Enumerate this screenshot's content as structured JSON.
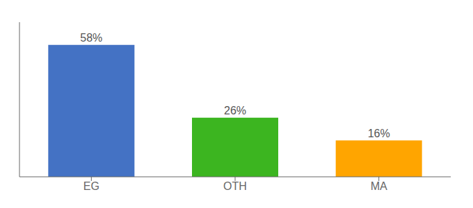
{
  "chart_data": {
    "type": "bar",
    "categories": [
      "EG",
      "OTH",
      "MA"
    ],
    "values": [
      58,
      26,
      16
    ],
    "value_labels": [
      "58%",
      "26%",
      "16%"
    ],
    "colors": [
      "#4472C4",
      "#3CB520",
      "#FFA500"
    ],
    "ylim": [
      0,
      68
    ],
    "data_labels": true,
    "tick_labels": "x",
    "grid": false
  }
}
